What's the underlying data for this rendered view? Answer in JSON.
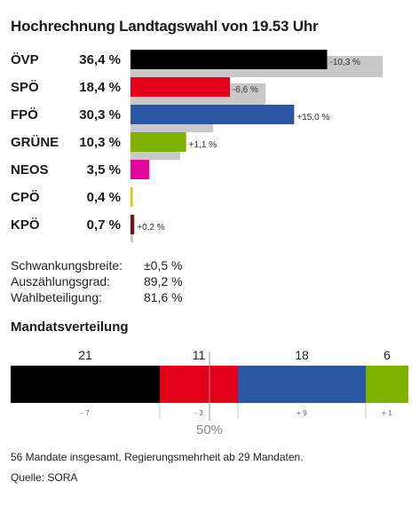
{
  "title": "Hochrechnung Landtagswahl von 19.53 Uhr",
  "colors": {
    "ÖVP": "#000000",
    "SPÖ": "#e2001a",
    "FPÖ": "#2a56a4",
    "GRÜNE": "#7fb100",
    "NEOS": "#e3069b",
    "CPÖ": "#e8c200",
    "KPÖ": "#7a1018",
    "previous": "#c8c8c8"
  },
  "chart_data": [
    {
      "type": "bar",
      "orientation": "horizontal",
      "categories": [
        "ÖVP",
        "SPÖ",
        "FPÖ",
        "GRÜNE",
        "NEOS",
        "CPÖ",
        "KPÖ"
      ],
      "series": [
        {
          "values": [
            36.4,
            18.4,
            30.3,
            10.3,
            3.5,
            0.4,
            0.7
          ]
        },
        {
          "values": [
            46.7,
            25.0,
            15.3,
            9.2,
            null,
            null,
            0.5
          ]
        }
      ],
      "value_labels": [
        "36,4 %",
        "18,4 %",
        "30,3 %",
        "10,3 %",
        "3,5 %",
        "0,4 %",
        "0,7 %"
      ],
      "change_labels": [
        "-10,3  %",
        "-6,6  %",
        "+15,0  %",
        "+1,1  %",
        "",
        "",
        "+0,2  %"
      ],
      "xlim": [
        0,
        47
      ]
    },
    {
      "type": "bar",
      "orientation": "stacked-horizontal",
      "title": "Mandatsverteilung",
      "categories": [
        "ÖVP",
        "SPÖ",
        "FPÖ",
        "GRÜNE"
      ],
      "values": [
        21,
        11,
        18,
        6
      ],
      "change_labels": [
        "- 7",
        "- 3",
        "+ 9",
        "+ 1"
      ],
      "total": 56,
      "majority_label": "50%"
    }
  ],
  "stats": [
    {
      "label": "Schwankungsbreite:",
      "value": "±0,5 %"
    },
    {
      "label": "Auszählungsgrad:",
      "value": "89,2 %"
    },
    {
      "label": "Wahlbeteiligung:",
      "value": "81,6 %"
    }
  ],
  "seats_title": "Mandatsverteilung",
  "note": "56 Mandate insgesamt, Regierungsmehrheit ab 29 Mandaten.",
  "source": "Quelle: SORA"
}
